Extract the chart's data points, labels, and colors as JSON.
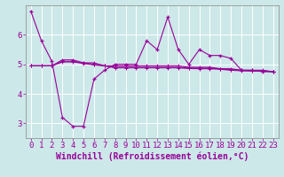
{
  "x": [
    0,
    1,
    2,
    3,
    4,
    5,
    6,
    7,
    8,
    9,
    10,
    11,
    12,
    13,
    14,
    15,
    16,
    17,
    18,
    19,
    20,
    21,
    22,
    23
  ],
  "series": [
    [
      6.8,
      5.8,
      5.1,
      3.2,
      2.9,
      2.9,
      4.5,
      4.8,
      5.0,
      5.0,
      5.0,
      5.8,
      5.5,
      6.6,
      5.5,
      5.0,
      5.5,
      5.3,
      5.3,
      5.2,
      4.8,
      4.8,
      4.75,
      4.75
    ],
    [
      4.95,
      4.95,
      4.95,
      5.15,
      5.15,
      5.05,
      5.05,
      4.95,
      4.95,
      4.95,
      4.95,
      4.95,
      4.95,
      4.95,
      4.95,
      4.9,
      4.9,
      4.9,
      4.85,
      4.85,
      4.8,
      4.8,
      4.8,
      4.75
    ],
    [
      4.95,
      4.95,
      4.95,
      5.1,
      5.1,
      5.05,
      5.0,
      4.95,
      4.9,
      4.9,
      4.9,
      4.9,
      4.9,
      4.9,
      4.9,
      4.87,
      4.87,
      4.87,
      4.85,
      4.82,
      4.8,
      4.78,
      4.78,
      4.75
    ],
    [
      4.95,
      4.95,
      4.95,
      5.08,
      5.08,
      5.03,
      4.98,
      4.95,
      4.88,
      4.88,
      4.88,
      4.88,
      4.88,
      4.88,
      4.88,
      4.86,
      4.85,
      4.85,
      4.83,
      4.8,
      4.78,
      4.77,
      4.77,
      4.75
    ]
  ],
  "line_color": "#990099",
  "marker": "+",
  "xlabel": "Windchill (Refroidissement éolien,°C)",
  "yticks": [
    3,
    4,
    5,
    6
  ],
  "xticks": [
    0,
    1,
    2,
    3,
    4,
    5,
    6,
    7,
    8,
    9,
    10,
    11,
    12,
    13,
    14,
    15,
    16,
    17,
    18,
    19,
    20,
    21,
    22,
    23
  ],
  "xlim": [
    -0.5,
    23.5
  ],
  "ylim": [
    2.5,
    7.0
  ],
  "bg_color": "#cce8e8",
  "grid_color": "#ffffff",
  "tick_color": "#990099",
  "xlabel_fontsize": 7.0,
  "tick_fontsize": 6.5,
  "lw": 0.8
}
